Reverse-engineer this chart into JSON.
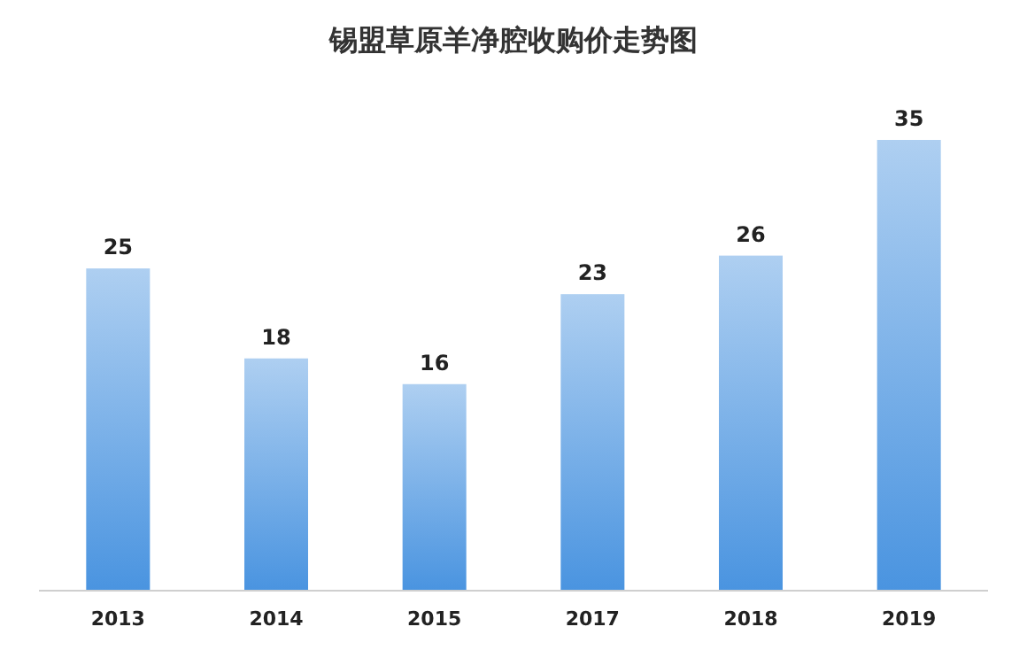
{
  "chart_data": {
    "type": "bar",
    "title": "锡盟草原羊净腔收购价走势图",
    "categories": [
      "2013",
      "2014",
      "2015",
      "2017",
      "2018",
      "2019"
    ],
    "values": [
      25,
      18,
      16,
      23,
      26,
      35
    ],
    "color": "#4a94e0",
    "data_labels": true
  }
}
